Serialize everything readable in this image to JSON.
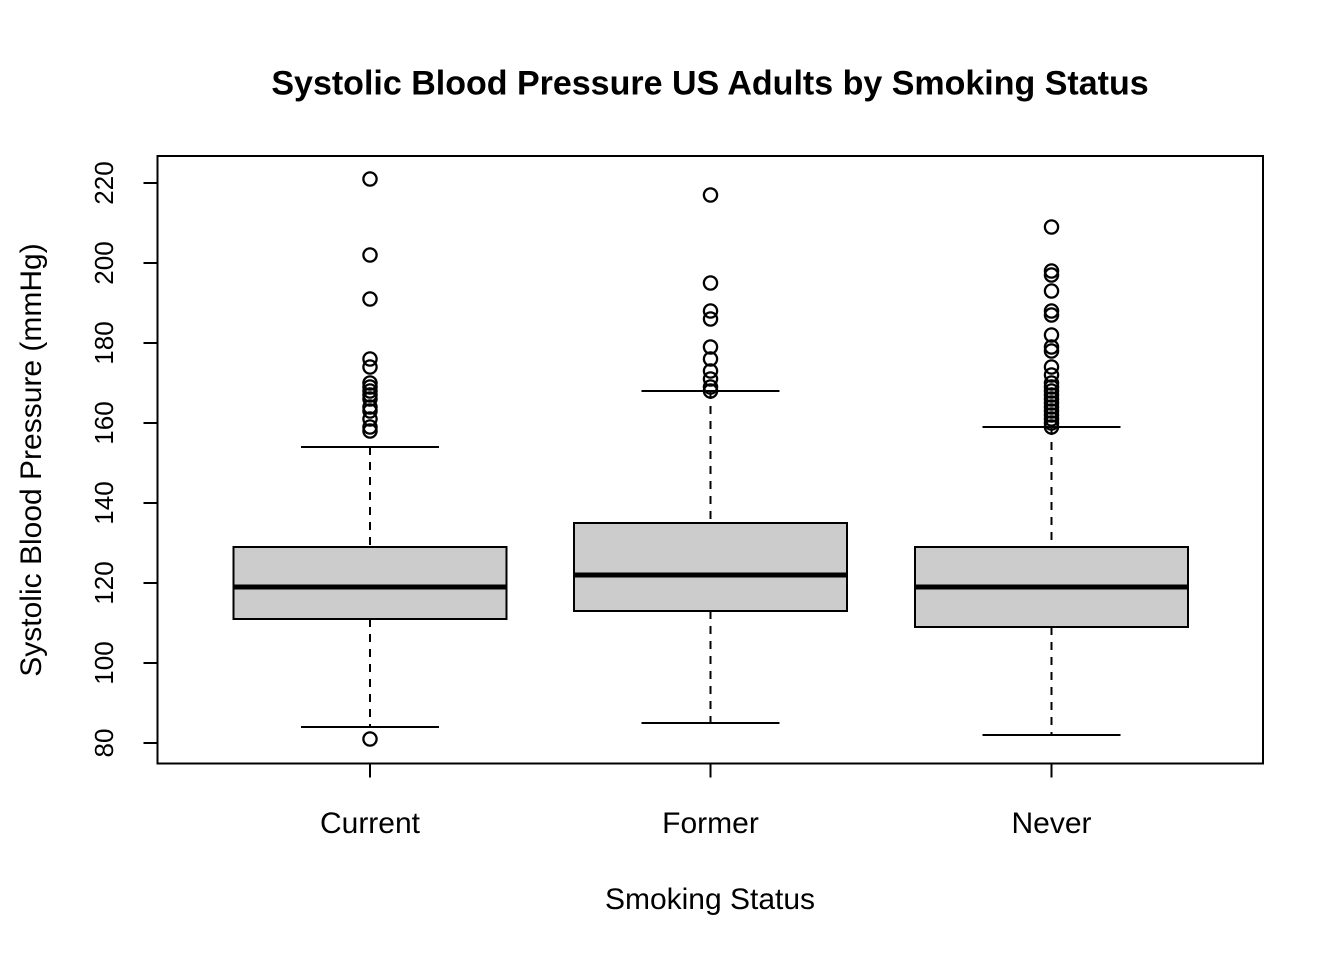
{
  "chart_data": {
    "type": "boxplot",
    "title": "Systolic Blood Pressure US Adults by Smoking Status",
    "xlabel": "Smoking Status",
    "ylabel": "Systolic Blood Pressure (mmHg)",
    "categories": [
      "Current",
      "Former",
      "Never"
    ],
    "y_ticks": [
      80,
      100,
      120,
      140,
      160,
      180,
      200,
      220
    ],
    "ylim": [
      75,
      227
    ],
    "grid": false,
    "legend": "none",
    "colors": {
      "box_fill": "#cccccc",
      "stroke": "#000000",
      "background": "#ffffff"
    },
    "series": [
      {
        "name": "Current",
        "lower_whisker": 84,
        "q1": 111,
        "median": 119,
        "q3": 129,
        "upper_whisker": 154,
        "outliers": [
          81,
          158,
          159,
          161,
          163,
          164,
          166,
          167,
          168,
          169,
          170,
          174,
          176,
          191,
          202,
          221
        ]
      },
      {
        "name": "Former",
        "lower_whisker": 85,
        "q1": 113,
        "median": 122,
        "q3": 135,
        "upper_whisker": 168,
        "outliers": [
          168,
          169,
          171,
          173,
          176,
          179,
          186,
          188,
          195,
          217
        ]
      },
      {
        "name": "Never",
        "lower_whisker": 82,
        "q1": 109,
        "median": 119,
        "q3": 129,
        "upper_whisker": 159,
        "outliers": [
          159,
          160,
          161,
          162,
          163,
          164,
          165,
          166,
          167,
          168,
          169,
          170,
          172,
          174,
          178,
          179,
          182,
          187,
          188,
          193,
          197,
          198,
          209
        ]
      }
    ]
  }
}
